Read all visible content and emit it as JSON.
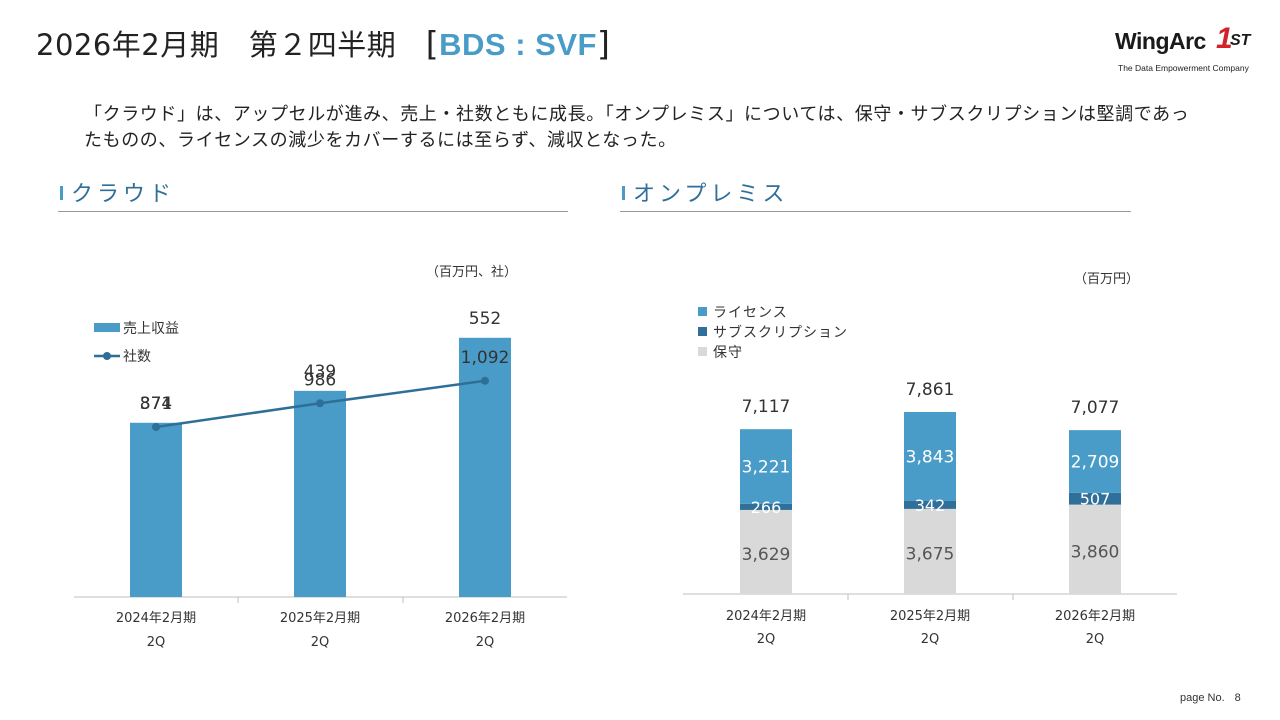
{
  "header": {
    "title_main": "2026年2月期　第２四半期　",
    "bracket_open": "[",
    "segment": "BDS : SVF",
    "bracket_close": "]"
  },
  "logo": {
    "wordmark": "WingArc",
    "one": "1",
    "st": "ST",
    "tagline": "The Data Empowerment Company"
  },
  "summary": "「クラウド」は、アップセルが進み、売上・社数ともに成長。「オンプレミス」については、保守・サブスクリプションは堅調であったものの、ライセンスの減少をカバーするには至らず、減収となった。",
  "sections": {
    "cloud_title": "クラウド",
    "onprem_title": "オンプレミス"
  },
  "colors": {
    "primary_blue": "#4a9cc8",
    "dark_blue": "#2f6f9a",
    "line_blue": "#2d6f97",
    "maintenance_gray": "#d9d9d9",
    "axis_gray": "#bfbfbf"
  },
  "chart_data": [
    {
      "type": "bar",
      "name": "cloud",
      "unit_label": "（百万円、社）",
      "categories": [
        {
          "line1": "2024年2月期",
          "line2": "2Q"
        },
        {
          "line1": "2025年2月期",
          "line2": "2Q"
        },
        {
          "line1": "2026年2月期",
          "line2": "2Q"
        }
      ],
      "series": [
        {
          "name": "売上収益",
          "kind": "bar",
          "values": [
            371,
            439,
            552
          ],
          "labels": [
            "371",
            "439",
            "552"
          ]
        },
        {
          "name": "社数",
          "kind": "line",
          "values": [
            874,
            986,
            1092
          ],
          "labels": [
            "874",
            "986",
            "1,092"
          ]
        }
      ],
      "legend_position": "top-left"
    },
    {
      "type": "bar",
      "stacked": true,
      "name": "onprem",
      "unit_label": "（百万円）",
      "categories": [
        {
          "line1": "2024年2月期",
          "line2": "2Q"
        },
        {
          "line1": "2025年2月期",
          "line2": "2Q"
        },
        {
          "line1": "2026年2月期",
          "line2": "2Q"
        }
      ],
      "series": [
        {
          "name": "ライセンス",
          "values": [
            3221,
            3843,
            2709
          ],
          "labels": [
            "3,221",
            "3,843",
            "2,709"
          ]
        },
        {
          "name": "サブスクリプション",
          "values": [
            266,
            342,
            507
          ],
          "labels": [
            "266",
            "342",
            "507"
          ]
        },
        {
          "name": "保守",
          "values": [
            3629,
            3675,
            3860
          ],
          "labels": [
            "3,629",
            "3,675",
            "3,860"
          ]
        }
      ],
      "totals": [
        "7,117",
        "7,861",
        "7,077"
      ],
      "legend_position": "top-left"
    }
  ],
  "footer": {
    "page_label": "page No.",
    "page_number": "8"
  }
}
